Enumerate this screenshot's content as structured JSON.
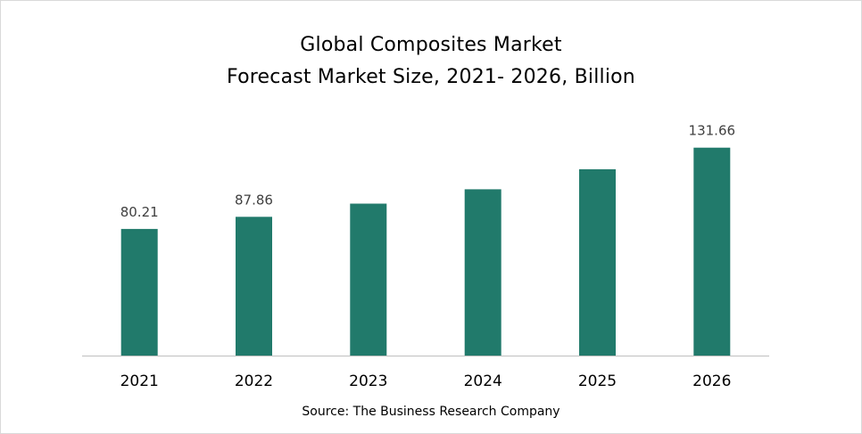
{
  "chart_data": {
    "type": "bar",
    "title": "Global Composites Market",
    "subtitle": "Forecast Market Size, 2021- 2026, Billion",
    "categories": [
      "2021",
      "2022",
      "2023",
      "2024",
      "2025",
      "2026"
    ],
    "values": [
      80.21,
      87.86,
      96.2,
      105.3,
      118.0,
      131.66
    ],
    "data_labels": [
      "80.21",
      "87.86",
      "",
      "",
      "",
      "131.66"
    ],
    "xlabel": "",
    "ylabel": "",
    "ylim": [
      0,
      145
    ],
    "grid": false,
    "legend": "none",
    "bar_color": "#217a6b",
    "axis_color": "#bfbfbf",
    "source": "Source: The Business Research Company"
  }
}
